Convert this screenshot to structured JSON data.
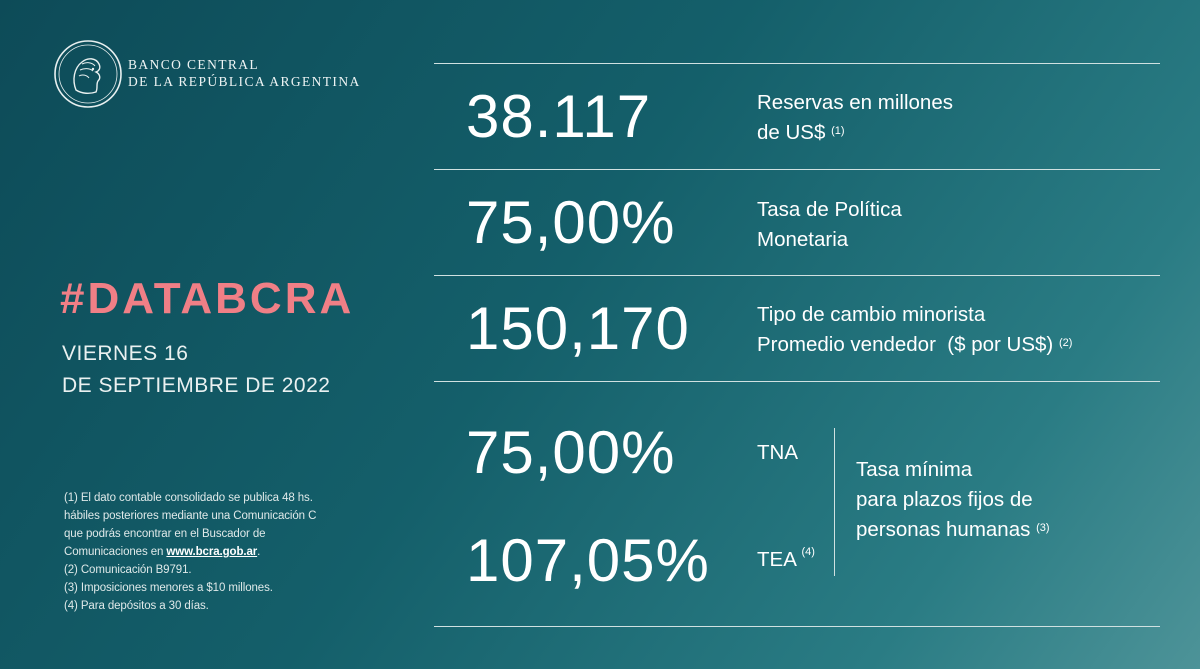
{
  "brand": {
    "name_line1": "BANCO CENTRAL",
    "name_line2": "DE LA REPÚBLICA ARGENTINA",
    "logo_icon": "bcra-seal-icon"
  },
  "headline": {
    "hashtag": "#DATABCRA",
    "day": "VIERNES 16",
    "date": "DE SEPTIEMBRE DE 2022"
  },
  "metrics": [
    {
      "value": "38.117",
      "label_line1": "Reservas en millones",
      "label_line2": "de US$",
      "note": "(1)"
    },
    {
      "value": "75,00%",
      "label_line1": "Tasa de Política",
      "label_line2": "Monetaria",
      "note": ""
    },
    {
      "value": "150,170",
      "label_line1": "Tipo de cambio minorista",
      "label_line2": "Promedio vendedor  ($ por US$)",
      "note": "(2)"
    }
  ],
  "plazo_fijo": {
    "tna_value": "75,00%",
    "tna_label": "TNA",
    "tea_value": "107,05%",
    "tea_label": "TEA",
    "tea_note": "(4)",
    "desc_line1": "Tasa mínima",
    "desc_line2": "para plazos fijos de",
    "desc_line3": "personas humanas",
    "desc_note": "(3)"
  },
  "footnotes": {
    "n1_line1": "(1) El dato contable consolidado se publica 48 hs.",
    "n1_line2": "hábiles posteriores mediante una Comunicación C",
    "n1_line3": "que podrás encontrar en el Buscador de",
    "n1_line4_prefix": "Comunicaciones en ",
    "n1_link": "www.bcra.gob.ar",
    "n1_suffix": ".",
    "n2": "(2) Comunicación B9791.",
    "n3": "(3) Imposiciones menores a $10 millones.",
    "n4": "(4) Para depósitos a 30 días."
  },
  "colors": {
    "background_dark": "#0d4b58",
    "background_light": "#4d9398",
    "accent_pink": "#f07f86",
    "text": "#ffffff"
  }
}
